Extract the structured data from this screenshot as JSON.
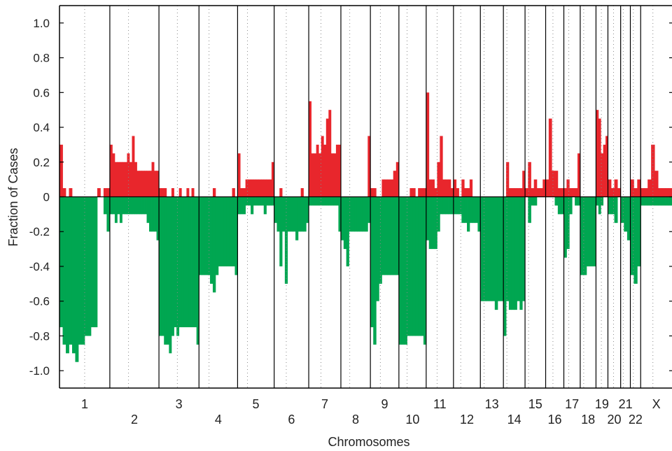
{
  "chart_data": {
    "type": "area",
    "xlabel": "Chromosomes",
    "ylabel": "Fraction of Cases",
    "ylim": [
      -1.1,
      1.1
    ],
    "yticks": [
      1.0,
      0.8,
      0.6,
      0.4,
      0.2,
      0,
      -0.2,
      -0.4,
      -0.6,
      -0.8,
      -1.0
    ],
    "ytick_labels": [
      "1.0",
      "0.8",
      "0.6",
      "0.4",
      "0.2",
      "0",
      "-0.2",
      "-0.4",
      "-0.6",
      "-0.8",
      "-1.0"
    ],
    "colors": {
      "gain": "#e8262c",
      "loss": "#00a651"
    },
    "chromosomes": [
      {
        "label": "1",
        "label_row": 1,
        "size": 249,
        "centromere": 0.5,
        "gain": [
          0.3,
          0.05,
          0.0,
          0.05,
          0.0,
          0.0,
          0.0,
          0.0,
          0.0,
          0.0,
          0.0,
          0.0,
          0.05,
          0.0,
          0.05,
          0.05
        ],
        "loss": [
          -0.75,
          -0.85,
          -0.9,
          -0.85,
          -0.9,
          -0.95,
          -0.85,
          -0.85,
          -0.8,
          -0.8,
          -0.75,
          -0.75,
          -0.0,
          -0.0,
          -0.1,
          -0.2
        ]
      },
      {
        "label": "2",
        "label_row": 2,
        "size": 243,
        "centromere": 0.38,
        "gain": [
          0.3,
          0.25,
          0.2,
          0.2,
          0.2,
          0.2,
          0.2,
          0.25,
          0.2,
          0.35,
          0.2,
          0.15,
          0.15,
          0.15,
          0.15,
          0.15,
          0.15,
          0.2,
          0.15,
          0.15
        ],
        "loss": [
          -0.1,
          -0.1,
          -0.15,
          -0.1,
          -0.15,
          -0.1,
          -0.1,
          -0.1,
          -0.1,
          -0.1,
          -0.1,
          -0.1,
          -0.1,
          -0.1,
          -0.1,
          -0.15,
          -0.2,
          -0.2,
          -0.2,
          -0.25
        ]
      },
      {
        "label": "3",
        "label_row": 1,
        "size": 198,
        "centromere": 0.46,
        "gain": [
          0.05,
          0.05,
          0.05,
          0.0,
          0.0,
          0.05,
          0.0,
          0.0,
          0.05,
          0.0,
          0.0,
          0.05,
          0.0,
          0.05,
          0.0,
          0.0
        ],
        "loss": [
          -0.8,
          -0.8,
          -0.85,
          -0.85,
          -0.9,
          -0.8,
          -0.75,
          -0.8,
          -0.75,
          -0.75,
          -0.75,
          -0.75,
          -0.75,
          -0.75,
          -0.75,
          -0.85
        ]
      },
      {
        "label": "4",
        "label_row": 2,
        "size": 191,
        "centromere": 0.26,
        "gain": [
          0.0,
          0.0,
          0.0,
          0.0,
          0.0,
          0.05,
          0.0,
          0.0,
          0.0,
          0.0,
          0.0,
          0.0,
          0.05,
          0.0
        ],
        "loss": [
          -0.45,
          -0.45,
          -0.45,
          -0.45,
          -0.5,
          -0.55,
          -0.45,
          -0.4,
          -0.4,
          -0.4,
          -0.4,
          -0.4,
          -0.4,
          -0.45
        ]
      },
      {
        "label": "5",
        "label_row": 1,
        "size": 181,
        "centromere": 0.27,
        "gain": [
          0.25,
          0.05,
          0.05,
          0.1,
          0.1,
          0.1,
          0.1,
          0.1,
          0.1,
          0.1,
          0.1,
          0.1,
          0.1,
          0.2
        ],
        "loss": [
          -0.1,
          -0.1,
          -0.1,
          -0.05,
          -0.05,
          -0.1,
          -0.05,
          -0.05,
          -0.05,
          -0.05,
          -0.1,
          -0.05,
          -0.05,
          -0.05
        ]
      },
      {
        "label": "6",
        "label_row": 2,
        "size": 171,
        "centromere": 0.35,
        "gain": [
          0.0,
          0.0,
          0.05,
          0.0,
          0.0,
          0.0,
          0.0,
          0.0,
          0.0,
          0.0,
          0.05,
          0.0,
          0.0
        ],
        "loss": [
          -0.15,
          -0.2,
          -0.4,
          -0.2,
          -0.5,
          -0.2,
          -0.2,
          -0.2,
          -0.25,
          -0.2,
          -0.2,
          -0.2,
          -0.15
        ]
      },
      {
        "label": "7",
        "label_row": 1,
        "size": 159,
        "centromere": 0.38,
        "gain": [
          0.55,
          0.25,
          0.25,
          0.3,
          0.25,
          0.35,
          0.3,
          0.45,
          0.5,
          0.25,
          0.25,
          0.3,
          0.3
        ],
        "loss": [
          -0.05,
          -0.05,
          -0.05,
          -0.05,
          -0.05,
          -0.05,
          -0.05,
          -0.05,
          -0.05,
          -0.05,
          -0.05,
          -0.05,
          -0.2
        ]
      },
      {
        "label": "8",
        "label_row": 2,
        "size": 146,
        "centromere": 0.3,
        "gain": [
          0.0,
          0.0,
          0.0,
          0.0,
          0.0,
          0.0,
          0.0,
          0.0,
          0.0,
          0.0,
          0.35
        ],
        "loss": [
          -0.25,
          -0.3,
          -0.4,
          -0.2,
          -0.2,
          -0.2,
          -0.2,
          -0.2,
          -0.2,
          -0.2,
          -0.15
        ]
      },
      {
        "label": "9",
        "label_row": 1,
        "size": 141,
        "centromere": 0.35,
        "gain": [
          0.05,
          0.05,
          0.0,
          0.0,
          0.1,
          0.1,
          0.1,
          0.1,
          0.15,
          0.2
        ],
        "loss": [
          -0.75,
          -0.85,
          -0.6,
          -0.5,
          -0.45,
          -0.45,
          -0.45,
          -0.45,
          -0.45,
          -0.45
        ]
      },
      {
        "label": "10",
        "label_row": 2,
        "size": 135,
        "centromere": 0.3,
        "gain": [
          0.0,
          0.0,
          0.0,
          0.0,
          0.05,
          0.05,
          0.0,
          0.05,
          0.05,
          0.05
        ],
        "loss": [
          -0.85,
          -0.85,
          -0.85,
          -0.8,
          -0.8,
          -0.8,
          -0.8,
          -0.8,
          -0.8,
          -0.85
        ]
      },
      {
        "label": "11",
        "label_row": 1,
        "size": 135,
        "centromere": 0.4,
        "gain": [
          0.6,
          0.1,
          0.1,
          0.05,
          0.2,
          0.35,
          0.1,
          0.1,
          0.1,
          0.05
        ],
        "loss": [
          -0.25,
          -0.3,
          -0.3,
          -0.3,
          -0.2,
          -0.1,
          -0.1,
          -0.1,
          -0.1,
          -0.1
        ]
      },
      {
        "label": "12",
        "label_row": 2,
        "size": 133,
        "centromere": 0.27,
        "gain": [
          0.1,
          0.05,
          0.0,
          0.1,
          0.05,
          0.05,
          0.1,
          0.0,
          0.0,
          0.0
        ],
        "loss": [
          -0.1,
          -0.1,
          -0.1,
          -0.15,
          -0.15,
          -0.2,
          -0.15,
          -0.15,
          -0.15,
          -0.2
        ]
      },
      {
        "label": "13",
        "label_row": 1,
        "size": 114,
        "centromere": 0.16,
        "gain": [
          0.0,
          0.0,
          0.0,
          0.0,
          0.0,
          0.0,
          0.0,
          0.0
        ],
        "loss": [
          -0.6,
          -0.6,
          -0.6,
          -0.6,
          -0.6,
          -0.65,
          -0.6,
          -0.6
        ]
      },
      {
        "label": "14",
        "label_row": 2,
        "size": 107,
        "centromere": 0.16,
        "gain": [
          0.0,
          0.2,
          0.05,
          0.05,
          0.05,
          0.05,
          0.05,
          0.15
        ],
        "loss": [
          -0.8,
          -0.6,
          -0.65,
          -0.65,
          -0.65,
          -0.6,
          -0.65,
          -0.6
        ]
      },
      {
        "label": "15",
        "label_row": 1,
        "size": 102,
        "centromere": 0.17,
        "gain": [
          0.05,
          0.2,
          0.05,
          0.1,
          0.05,
          0.05,
          0.1
        ],
        "loss": [
          -0.0,
          -0.15,
          -0.05,
          -0.05,
          -0.0,
          -0.0,
          -0.0
        ]
      },
      {
        "label": "16",
        "label_row": 2,
        "size": 90,
        "centromere": 0.4,
        "gain": [
          0.1,
          0.45,
          0.15,
          0.15,
          0.05,
          0.05
        ],
        "loss": [
          -0.0,
          -0.0,
          -0.0,
          -0.05,
          -0.1,
          -0.1
        ]
      },
      {
        "label": "17",
        "label_row": 1,
        "size": 81,
        "centromere": 0.3,
        "gain": [
          0.05,
          0.1,
          0.05,
          0.05,
          0.05,
          0.25
        ],
        "loss": [
          -0.35,
          -0.3,
          -0.1,
          -0.0,
          -0.05,
          -0.05
        ]
      },
      {
        "label": "18",
        "label_row": 2,
        "size": 78,
        "centromere": 0.22,
        "gain": [
          0.0,
          0.0,
          0.0,
          0.0,
          0.0
        ],
        "loss": [
          -0.45,
          -0.45,
          -0.4,
          -0.4,
          -0.4
        ]
      },
      {
        "label": "19",
        "label_row": 1,
        "size": 59,
        "centromere": 0.45,
        "gain": [
          0.5,
          0.45,
          0.25,
          0.3,
          0.35
        ],
        "loss": [
          -0.05,
          -0.1,
          -0.05,
          -0.0,
          -0.0
        ]
      },
      {
        "label": "20",
        "label_row": 2,
        "size": 63,
        "centromere": 0.44,
        "gain": [
          0.1,
          0.05,
          0.1,
          0.05
        ],
        "loss": [
          -0.1,
          -0.1,
          -0.15,
          -0.0
        ]
      },
      {
        "label": "21",
        "label_row": 1,
        "size": 48,
        "centromere": 0.27,
        "gain": [
          0.0,
          0.0,
          0.0
        ],
        "loss": [
          -0.15,
          -0.2,
          -0.25
        ]
      },
      {
        "label": "22",
        "label_row": 2,
        "size": 51,
        "centromere": 0.29,
        "gain": [
          0.1,
          0.05,
          0.1
        ],
        "loss": [
          -0.45,
          -0.5,
          -0.4
        ]
      },
      {
        "label": "X",
        "label_row": 1,
        "size": 155,
        "centromere": 0.39,
        "gain": [
          0.05,
          0.05,
          0.1,
          0.3,
          0.15,
          0.05,
          0.05,
          0.05,
          0.05
        ],
        "loss": [
          -0.05,
          -0.05,
          -0.05,
          -0.05,
          -0.05,
          -0.05,
          -0.05,
          -0.05,
          -0.05
        ]
      }
    ]
  }
}
